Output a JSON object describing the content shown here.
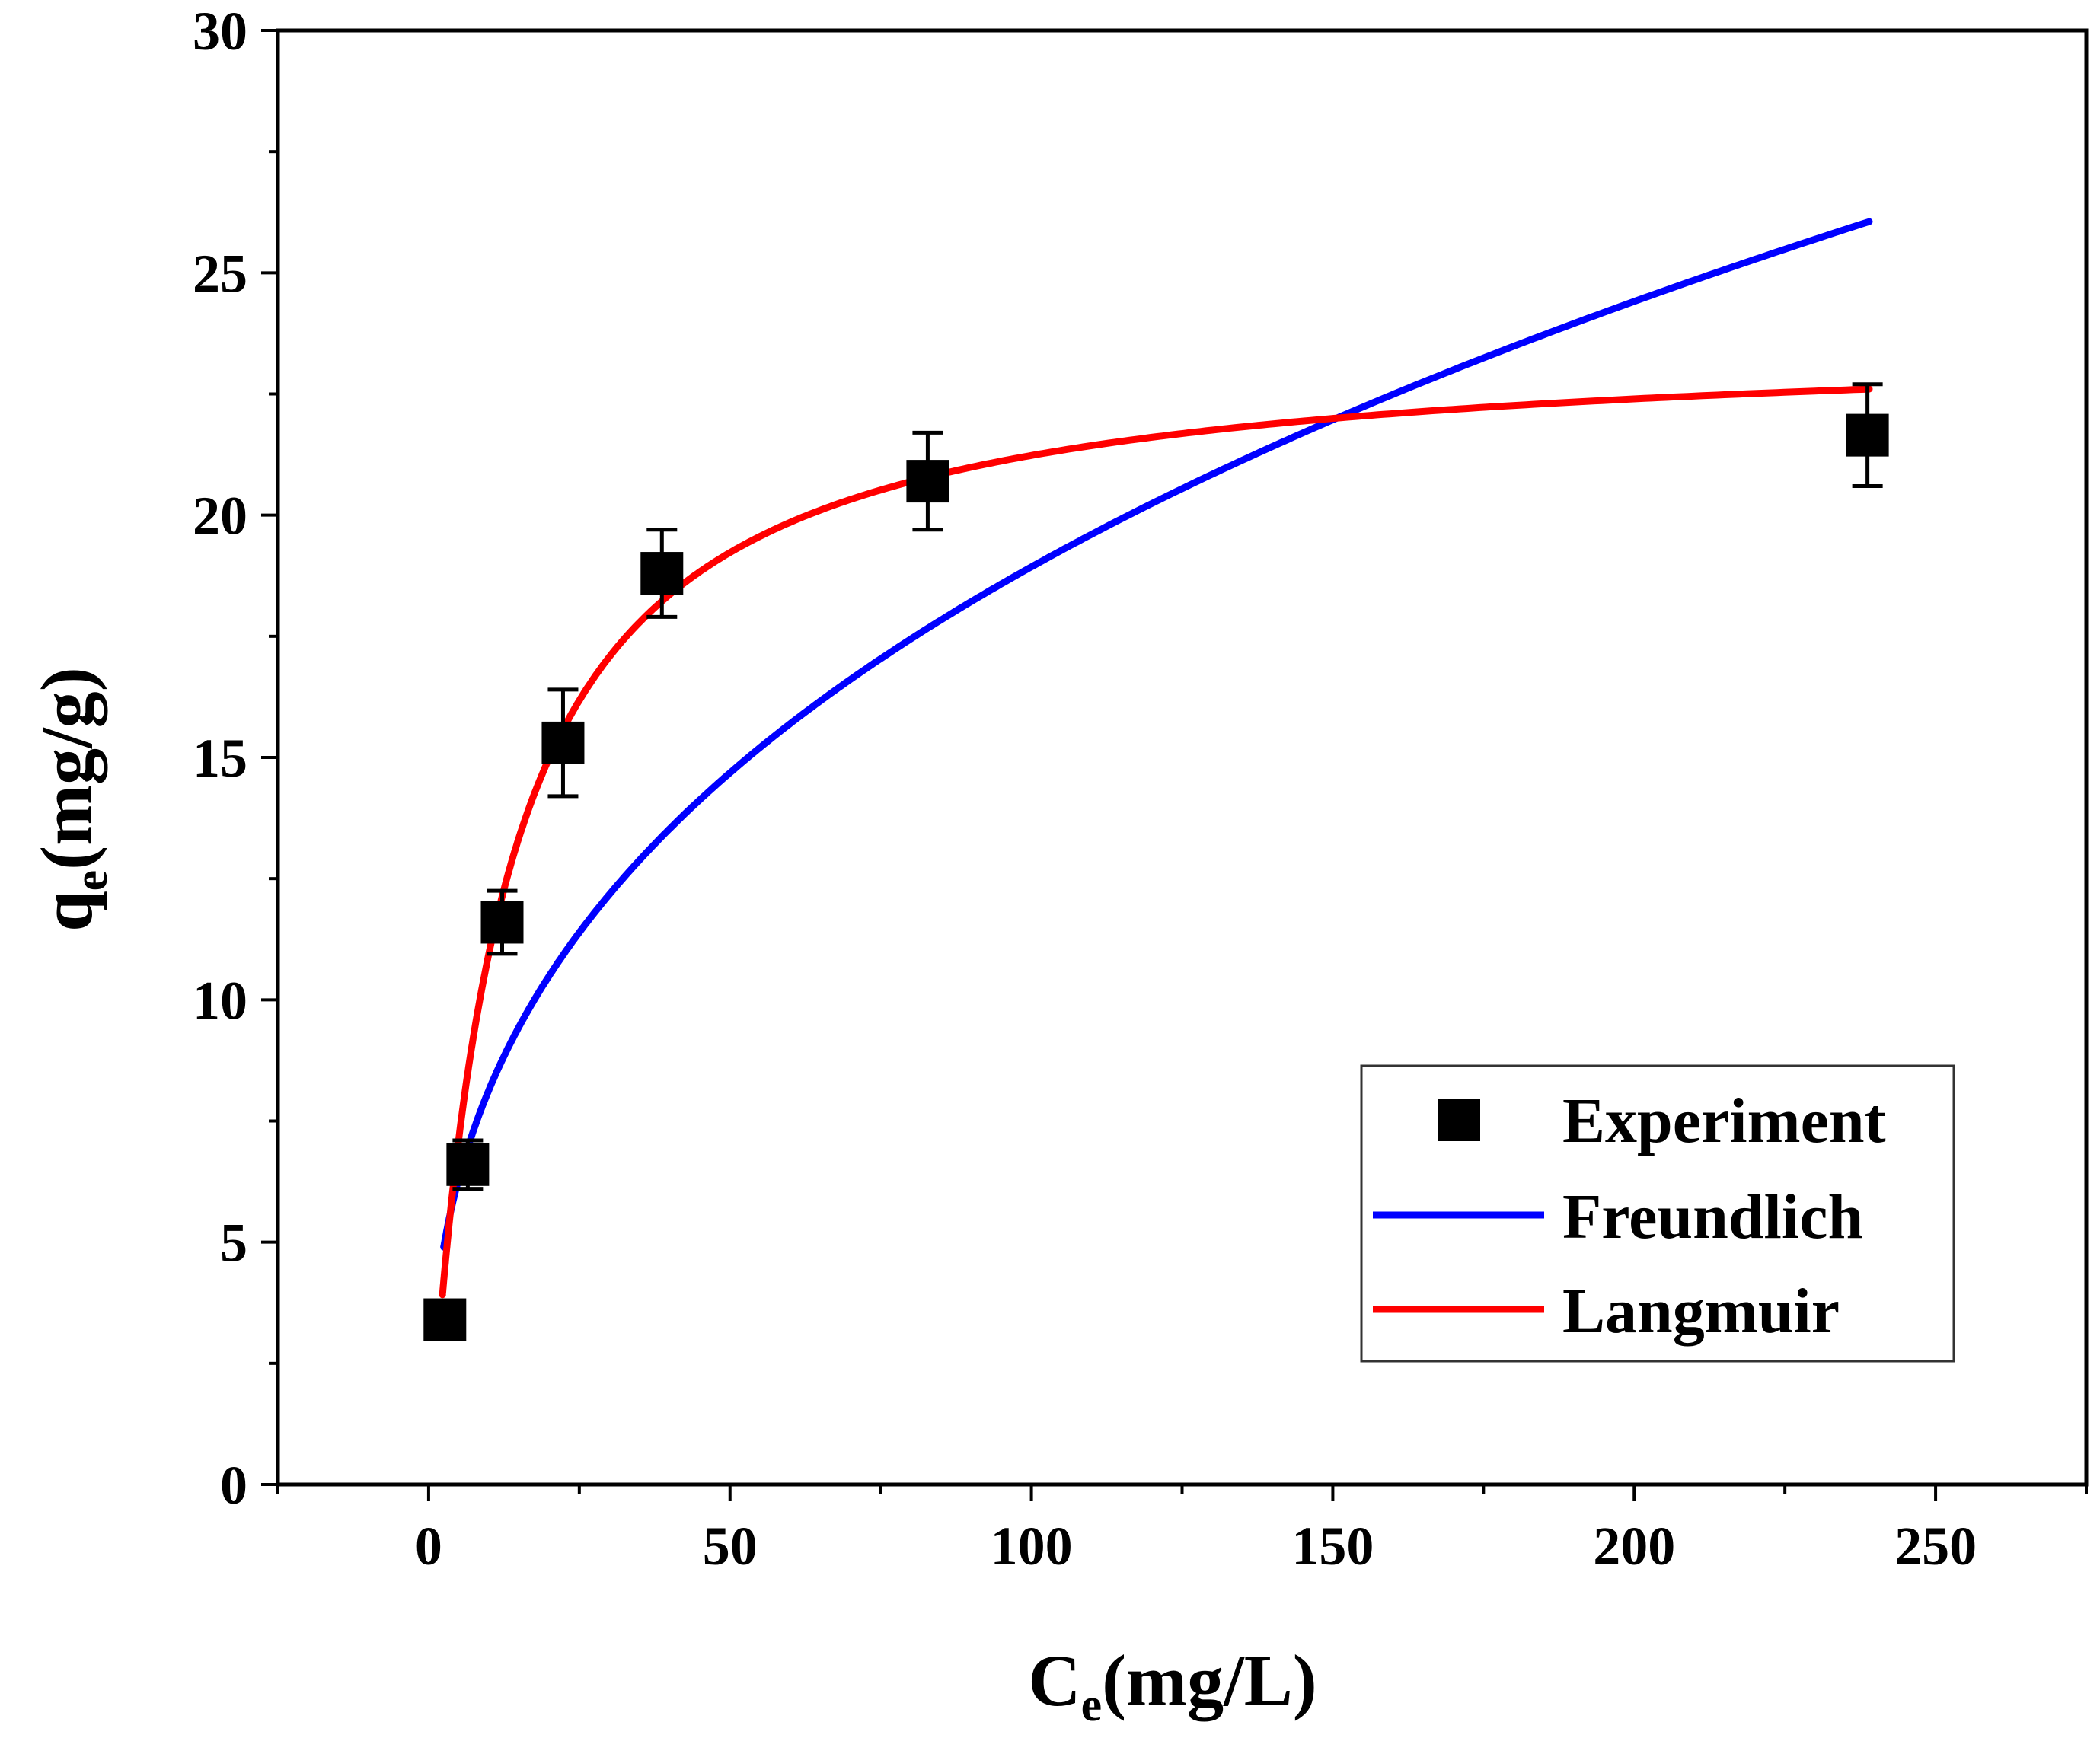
{
  "chart_data": {
    "type": "scatter",
    "title": "",
    "xlabel": {
      "main": "C",
      "sub": "e",
      "rest": "(mg/L)"
    },
    "ylabel": {
      "main": "q",
      "sub": "e",
      "rest": "(mg/g)"
    },
    "xlim": [
      -25,
      275
    ],
    "ylim": [
      0,
      30
    ],
    "x_ticks": [
      0,
      50,
      100,
      150,
      200,
      250
    ],
    "x_tick_labels": [
      "0",
      "50",
      "100",
      "150",
      "200",
      "250"
    ],
    "y_ticks": [
      0,
      5,
      10,
      15,
      20,
      25,
      30
    ],
    "y_tick_labels": [
      "0",
      "5",
      "10",
      "15",
      "20",
      "25",
      "30"
    ],
    "x_minor_step": 25,
    "y_minor_step": 2.5,
    "grid": false,
    "legend_position": "bottom-right",
    "colors": {
      "experiment": "#000000",
      "freundlich": "#0000ff",
      "langmuir": "#ff0000"
    },
    "series": [
      {
        "name": "Experiment",
        "kind": "points",
        "x": [
          2.7,
          6.5,
          12.2,
          22.3,
          38.7,
          82.8,
          238.7
        ],
        "y": [
          3.4,
          6.6,
          11.6,
          15.3,
          18.8,
          20.7,
          21.65
        ],
        "error": [
          0.2,
          0.5,
          0.65,
          1.1,
          0.9,
          1.0,
          1.05
        ]
      },
      {
        "name": "Freundlich",
        "kind": "curve",
        "model": "freundlich",
        "params": {
          "Kf": 3.5,
          "n": 2.728
        },
        "x_range": [
          2.5,
          239
        ]
      },
      {
        "name": "Langmuir",
        "kind": "curve",
        "model": "langmuir",
        "params": {
          "qmax": 23.7,
          "KL": 0.086
        },
        "x_range": [
          2.3,
          239
        ]
      }
    ]
  }
}
